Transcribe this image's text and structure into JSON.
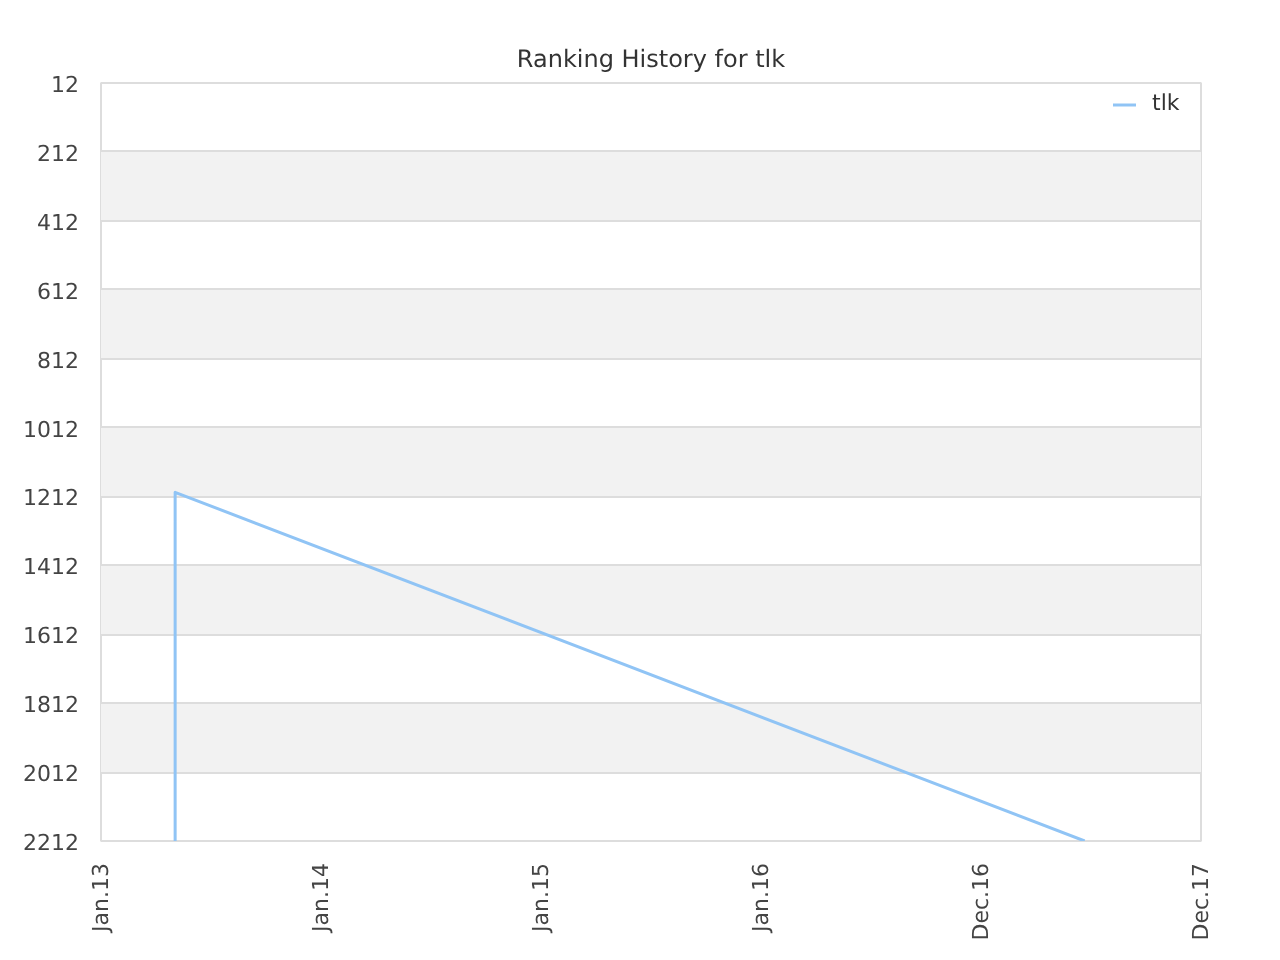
{
  "chart_data": {
    "type": "line",
    "title": "Ranking History for tlk",
    "x": [
      "2013-05-04",
      "2013-05-04",
      "2017-06-21"
    ],
    "series": [
      {
        "name": "tlk",
        "color": "#90c4f5",
        "values": [
          2212,
          1200,
          2212
        ]
      }
    ],
    "xlim": [
      "2013-01-01",
      "2017-12-31"
    ],
    "xticks": [
      {
        "value": "2013-01-01",
        "label": "Jan.13"
      },
      {
        "value": "2014-01-01",
        "label": "Jan.14"
      },
      {
        "value": "2015-01-01",
        "label": "Jan.15"
      },
      {
        "value": "2016-01-01",
        "label": "Jan.16"
      },
      {
        "value": "2016-12-31",
        "label": "Dec.16"
      },
      {
        "value": "2017-12-31",
        "label": "Dec.17"
      }
    ],
    "ylim": [
      2212,
      12
    ],
    "yticks": [
      12,
      212,
      412,
      612,
      812,
      1012,
      1212,
      1412,
      1612,
      1812,
      2012,
      2212
    ],
    "grid": "y",
    "legend": "top right",
    "marker": "none",
    "line_style": "solid"
  }
}
